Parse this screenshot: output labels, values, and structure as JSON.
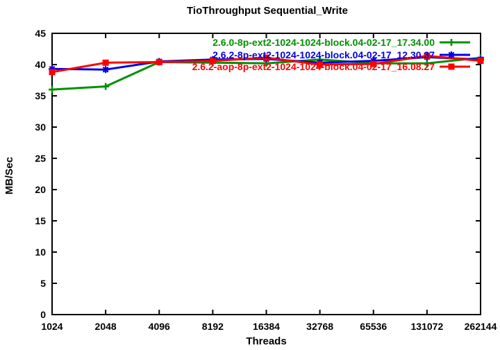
{
  "title": "TioThroughput Sequential_Write",
  "chart_data": {
    "type": "line",
    "title": "TioThroughput Sequential_Write",
    "xlabel": "Threads",
    "ylabel": "MB/Sec",
    "x_scale": "log2",
    "categories": [
      "1024",
      "2048",
      "4096",
      "8192",
      "16384",
      "32768",
      "65536",
      "131072",
      "262144"
    ],
    "ylim": [
      0,
      45
    ],
    "yticks": [
      0,
      5,
      10,
      15,
      20,
      25,
      30,
      35,
      40,
      45
    ],
    "grid": false,
    "legend_position": "top-right-inside",
    "frame_color": "#000000",
    "series": [
      {
        "name": "2.6.0-8p-ext2-1024-1024-block.04-02-17_17.34.00",
        "color": "#009000",
        "marker": "plus",
        "values": [
          36.0,
          36.5,
          40.4,
          40.3,
          40.2,
          40.8,
          40.2,
          40.2,
          41.1
        ]
      },
      {
        "name": "2.6.2-8p-ext2-1024-1024-block.04-02-17_12.30.37",
        "color": "#0000e0",
        "marker": "asterisk",
        "values": [
          39.3,
          39.2,
          40.5,
          40.8,
          40.9,
          40.3,
          40.6,
          41.2,
          40.8
        ]
      },
      {
        "name": "2.6.2-aop-8p-ext2-1024-1024-block.04-02-17_16.08.27",
        "color": "#ff0000",
        "marker": "square",
        "values": [
          38.8,
          40.3,
          40.4,
          40.6,
          41.1,
          40.0,
          40.1,
          41.4,
          40.6
        ]
      }
    ]
  }
}
